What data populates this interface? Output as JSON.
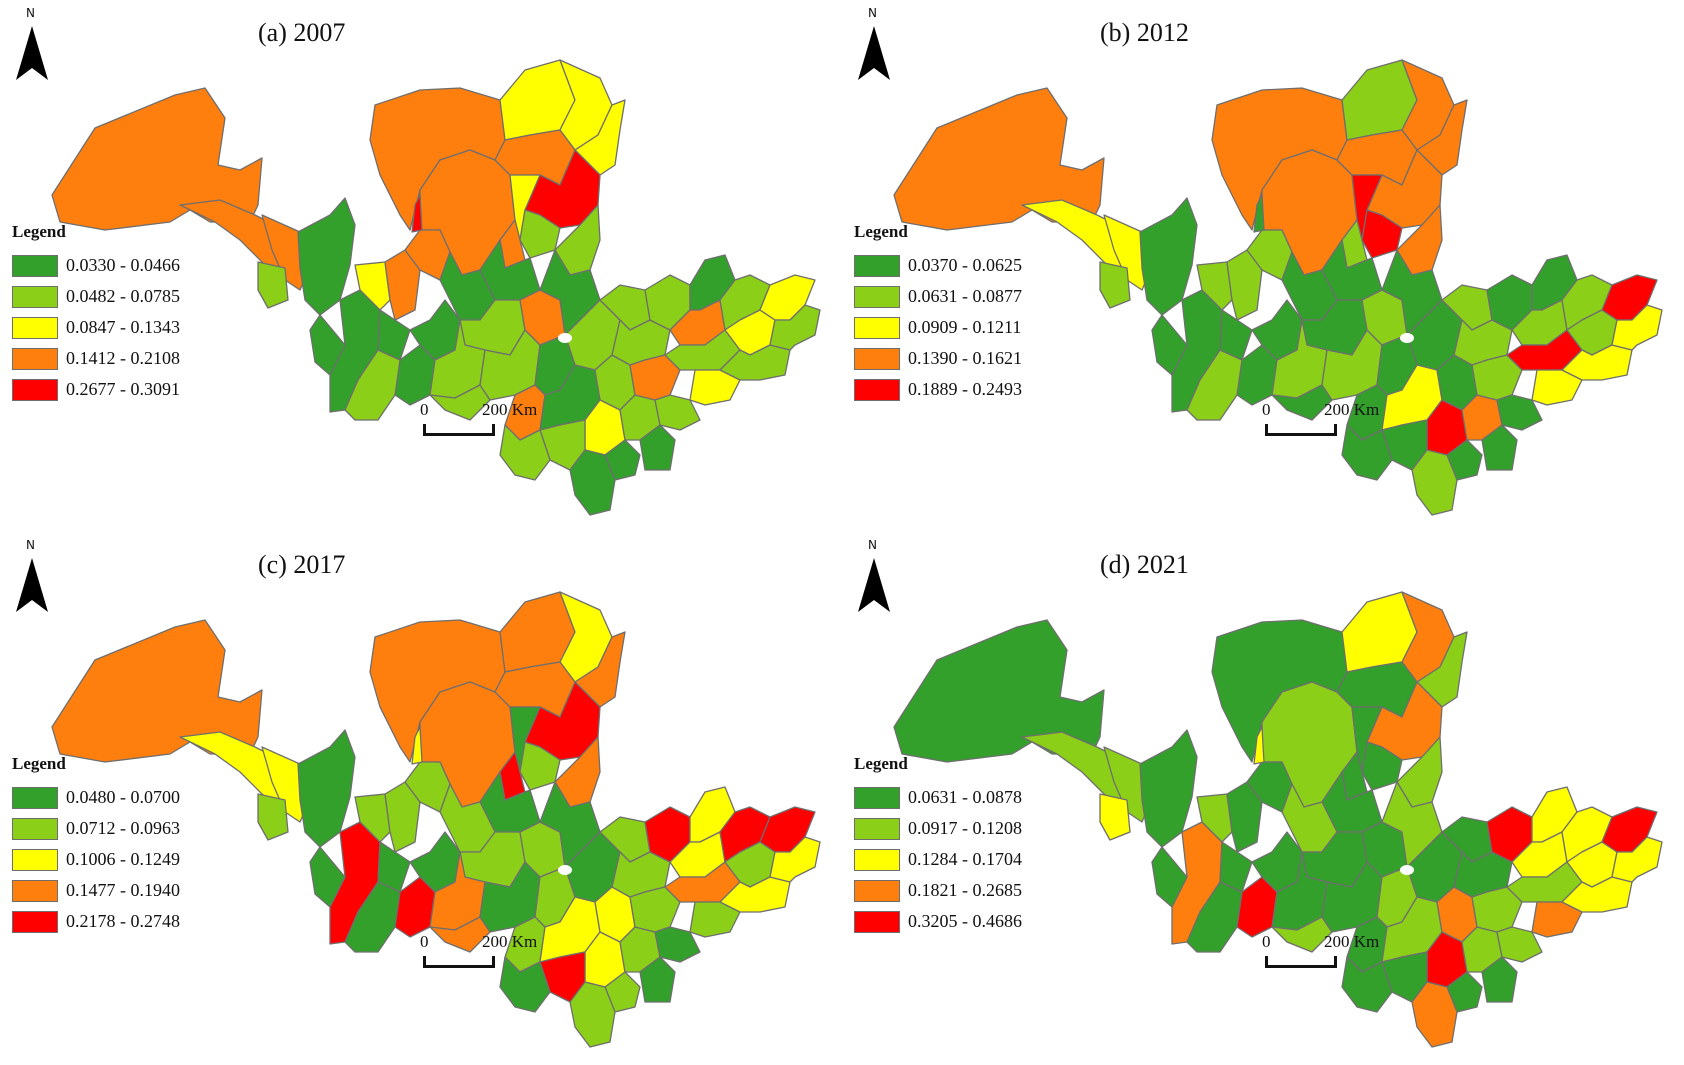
{
  "figure": {
    "north_label": "N",
    "legend_title": "Legend",
    "scale": {
      "start": "0",
      "end": "200",
      "unit": "Km"
    },
    "class_colors": [
      "#33a02c",
      "#8ccf18",
      "#ffff00",
      "#ff7f0e",
      "#ff0000"
    ],
    "boundary_color": "#6e6e6e"
  },
  "panels": [
    {
      "title": "(a) 2007",
      "legend": [
        {
          "range": "0.0330 - 0.0466",
          "color": "#33a02c"
        },
        {
          "range": "0.0482 - 0.0785",
          "color": "#8ccf18"
        },
        {
          "range": "0.0847 - 0.1343",
          "color": "#ffff00"
        },
        {
          "range": "0.1412 - 0.2108",
          "color": "#ff7f0e"
        },
        {
          "range": "0.2677 - 0.3091",
          "color": "#ff0000"
        }
      ]
    },
    {
      "title": "(b) 2012",
      "legend": [
        {
          "range": "0.0370 - 0.0625",
          "color": "#33a02c"
        },
        {
          "range": "0.0631 - 0.0877",
          "color": "#8ccf18"
        },
        {
          "range": "0.0909 - 0.1211",
          "color": "#ffff00"
        },
        {
          "range": "0.1390 - 0.1621",
          "color": "#ff7f0e"
        },
        {
          "range": "0.1889 - 0.2493",
          "color": "#ff0000"
        }
      ]
    },
    {
      "title": "(c) 2017",
      "legend": [
        {
          "range": "0.0480 - 0.0700",
          "color": "#33a02c"
        },
        {
          "range": "0.0712 - 0.0963",
          "color": "#8ccf18"
        },
        {
          "range": "0.1006 - 0.1249",
          "color": "#ffff00"
        },
        {
          "range": "0.1477 - 0.1940",
          "color": "#ff7f0e"
        },
        {
          "range": "0.2178 - 0.2748",
          "color": "#ff0000"
        }
      ]
    },
    {
      "title": "(d) 2021",
      "legend": [
        {
          "range": "0.0631 - 0.0878",
          "color": "#33a02c"
        },
        {
          "range": "0.0917 - 0.1208",
          "color": "#8ccf18"
        },
        {
          "range": "0.1284 - 0.1704",
          "color": "#ffff00"
        },
        {
          "range": "0.1821 - 0.2685",
          "color": "#ff7f0e"
        },
        {
          "range": "0.3205 - 0.4686",
          "color": "#ff0000"
        }
      ]
    }
  ]
}
